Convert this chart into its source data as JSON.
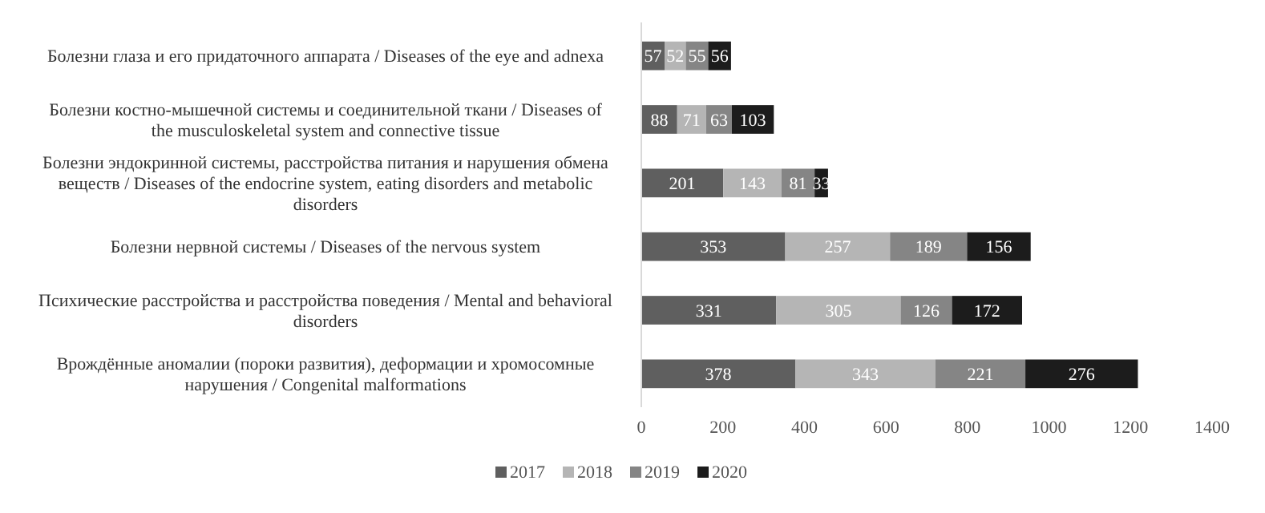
{
  "chart_data": {
    "type": "bar",
    "orientation": "horizontal",
    "stacked": true,
    "data_labels": true,
    "legend": "bottom",
    "grid": false,
    "categories": [
      "Болезни глаза и его придаточного аппарата / Diseases of the eye and adnexa",
      "Болезни костно-мышечной системы и соединительной ткани / Diseases of the musculoskeletal system and connective tissue",
      "Болезни эндокринной системы, расстройства питания и нарушения обмена веществ / Diseases of the endocrine system, eating disorders and metabolic disorders",
      "Болезни нервной системы / Diseases of the nervous system",
      "Психические расстройства и расстройства поведения / Mental and behavioral disorders",
      "Врождённые аномалии (пороки развития), деформации и хромосомные нарушения / Congenital malformations"
    ],
    "series": [
      {
        "name": "2017",
        "color": "#5f5f5f",
        "values": [
          57,
          88,
          201,
          353,
          331,
          378
        ]
      },
      {
        "name": "2018",
        "color": "#b5b5b5",
        "values": [
          52,
          71,
          143,
          257,
          305,
          343
        ]
      },
      {
        "name": "2019",
        "color": "#858585",
        "values": [
          55,
          63,
          81,
          189,
          126,
          221
        ]
      },
      {
        "name": "2020",
        "color": "#1c1c1c",
        "values": [
          56,
          103,
          33,
          156,
          172,
          276
        ]
      }
    ],
    "xlim": [
      0,
      1400
    ],
    "xticks": [
      0,
      200,
      400,
      600,
      800,
      1000,
      1200,
      1400
    ]
  }
}
